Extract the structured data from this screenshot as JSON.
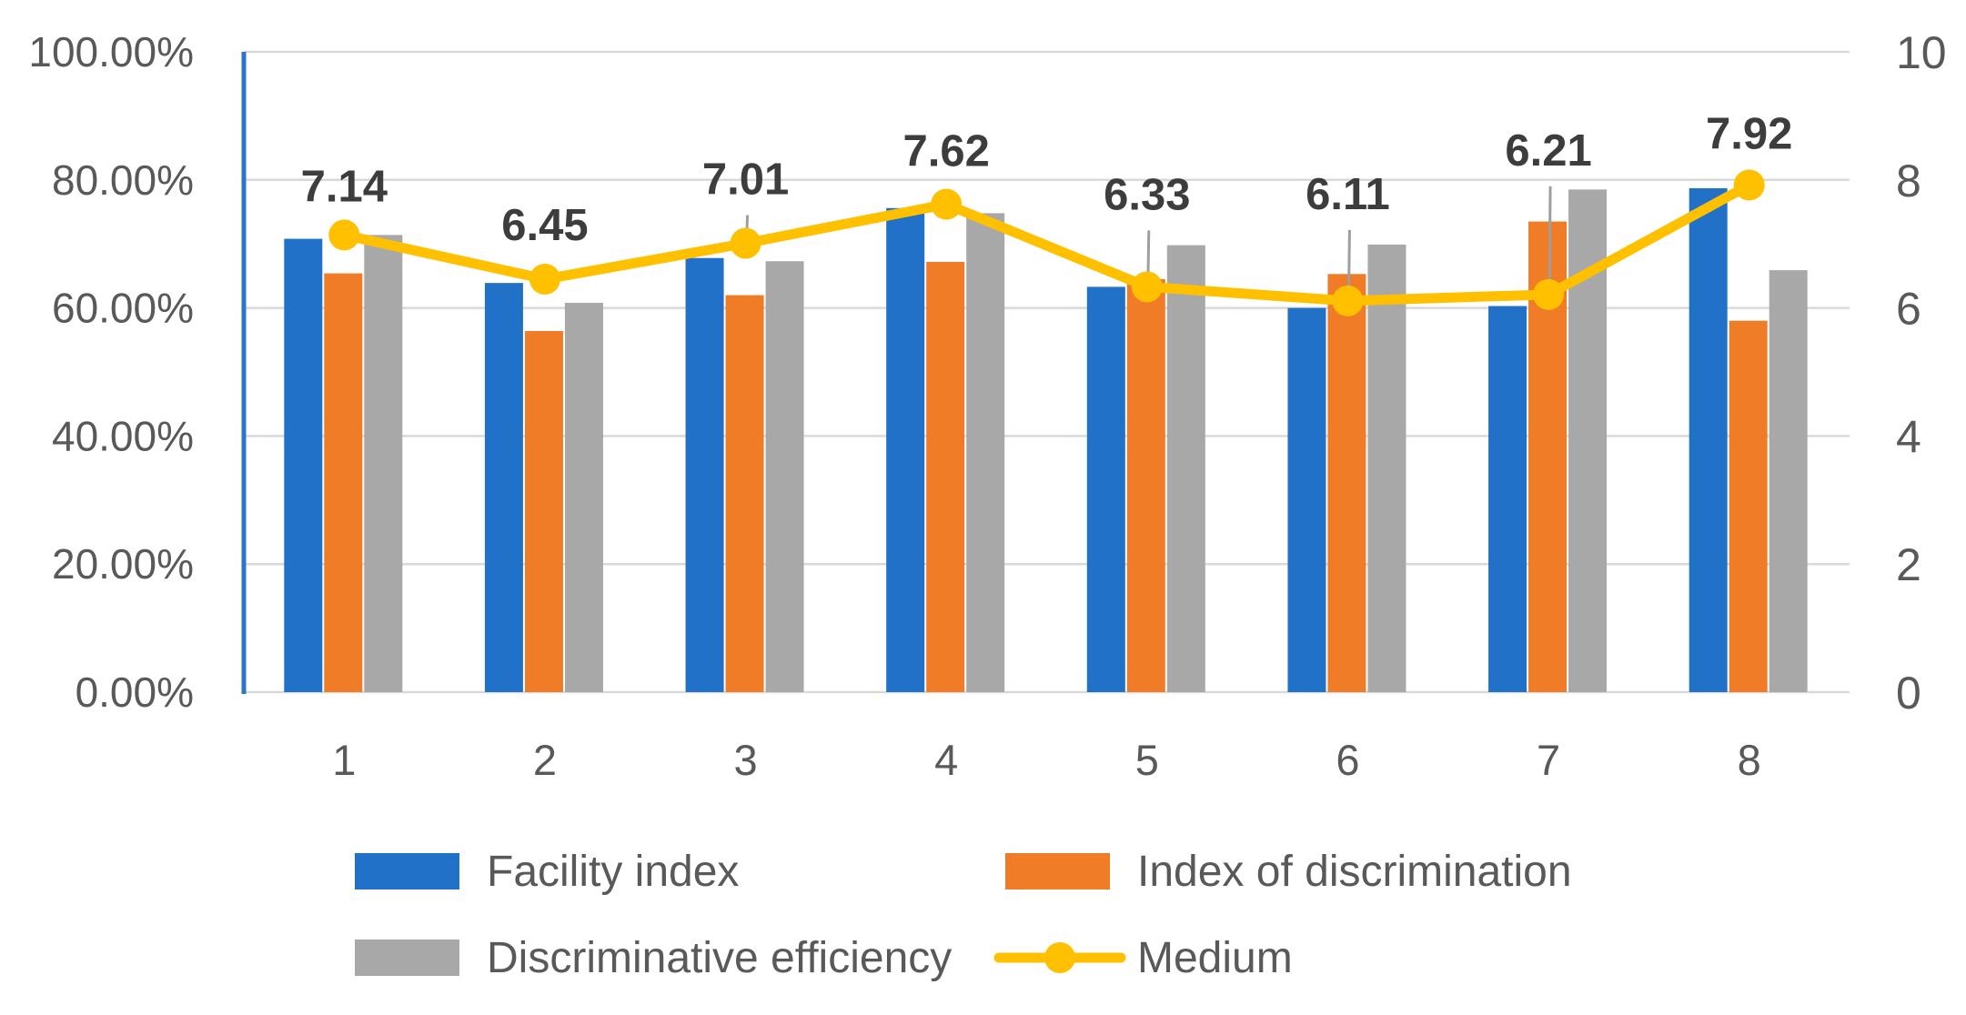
{
  "chart_data": {
    "type": "combo-bar-line",
    "title": "",
    "categories": [
      "1",
      "2",
      "3",
      "4",
      "5",
      "6",
      "7",
      "8"
    ],
    "series": [
      {
        "name": "Facility index",
        "type": "bar",
        "axis": "left",
        "unit": "%",
        "color": "#2171C8",
        "values": [
          70.8,
          63.9,
          67.8,
          75.6,
          63.3,
          60.0,
          60.3,
          78.7
        ]
      },
      {
        "name": "Index of discrimination",
        "type": "bar",
        "axis": "left",
        "unit": "%",
        "color": "#F07C28",
        "values": [
          65.4,
          56.4,
          62.0,
          67.2,
          64.5,
          65.3,
          73.5,
          58.0
        ]
      },
      {
        "name": "Discriminative efficiency",
        "type": "bar",
        "axis": "left",
        "unit": "%",
        "color": "#A8A8A8",
        "values": [
          71.4,
          60.8,
          67.3,
          74.8,
          69.8,
          69.9,
          78.5,
          65.9
        ]
      },
      {
        "name": "Medium",
        "type": "line",
        "axis": "right",
        "color": "#FFC000",
        "values": [
          7.14,
          6.45,
          7.01,
          7.62,
          6.33,
          6.11,
          6.21,
          7.92
        ],
        "data_labels": [
          "7.14",
          "6.45",
          "7.01",
          "7.62",
          "6.33",
          "6.11",
          "6.21",
          "7.92"
        ]
      }
    ],
    "left_axis": {
      "min": 0,
      "max": 100,
      "ticks": [
        "100.00%",
        "80.00%",
        "60.00%",
        "40.00%",
        "20.00%",
        "0.00%"
      ]
    },
    "right_axis": {
      "min": 0,
      "max": 10,
      "ticks": [
        "10",
        "8",
        "6",
        "4",
        "2",
        "0"
      ]
    },
    "leader_lines": [
      3,
      5,
      6,
      7
    ],
    "grid": true,
    "legend_position": "bottom",
    "colors": {
      "gridline": "#D9D9D9",
      "axis_line": "#2E74C9",
      "tick_text": "#595959",
      "data_label_text": "#3d3d3d",
      "leader_line": "#9E9E9E",
      "background": "#FFFFFF"
    }
  }
}
